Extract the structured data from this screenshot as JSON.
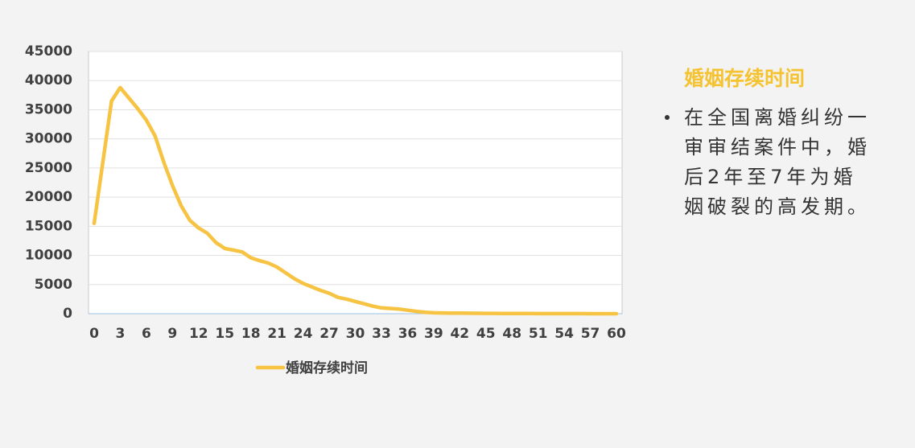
{
  "chart_data": {
    "type": "line",
    "x": [
      0,
      1,
      2,
      3,
      4,
      5,
      6,
      7,
      8,
      9,
      10,
      11,
      12,
      13,
      14,
      15,
      16,
      17,
      18,
      19,
      20,
      21,
      22,
      23,
      24,
      25,
      26,
      27,
      28,
      29,
      30,
      31,
      32,
      33,
      34,
      35,
      36,
      37,
      38,
      39,
      40,
      41,
      42,
      43,
      44,
      45,
      46,
      47,
      48,
      49,
      50,
      51,
      52,
      53,
      54,
      55,
      56,
      57,
      58,
      59,
      60
    ],
    "series": [
      {
        "name": "婚姻存续时间",
        "color": "#f6c343",
        "values": [
          15500,
          26000,
          36500,
          38800,
          37000,
          35200,
          33200,
          30500,
          26000,
          22000,
          18500,
          16000,
          14700,
          13800,
          12200,
          11200,
          10900,
          10600,
          9600,
          9100,
          8700,
          8000,
          7000,
          6000,
          5200,
          4600,
          4000,
          3500,
          2800,
          2500,
          2100,
          1700,
          1300,
          1000,
          900,
          800,
          600,
          400,
          250,
          150,
          120,
          100,
          90,
          80,
          70,
          60,
          50,
          40,
          35,
          30,
          25,
          20,
          18,
          15,
          12,
          10,
          8,
          6,
          4,
          2,
          0
        ]
      }
    ],
    "xlim": [
      0,
      60
    ],
    "xticks": [
      0,
      3,
      6,
      9,
      12,
      15,
      18,
      21,
      24,
      27,
      30,
      33,
      36,
      39,
      42,
      45,
      48,
      51,
      54,
      57,
      60
    ],
    "ylim": [
      0,
      45000
    ],
    "yticks": [
      0,
      5000,
      10000,
      15000,
      20000,
      25000,
      30000,
      35000,
      40000,
      45000
    ],
    "grid": true,
    "legend": "bottom"
  },
  "side_panel": {
    "heading": "婚姻存续时间",
    "bullet": "在全国离婚纠纷一审审结案件中，婚后2年至7年为婚姻破裂的高发期。"
  }
}
